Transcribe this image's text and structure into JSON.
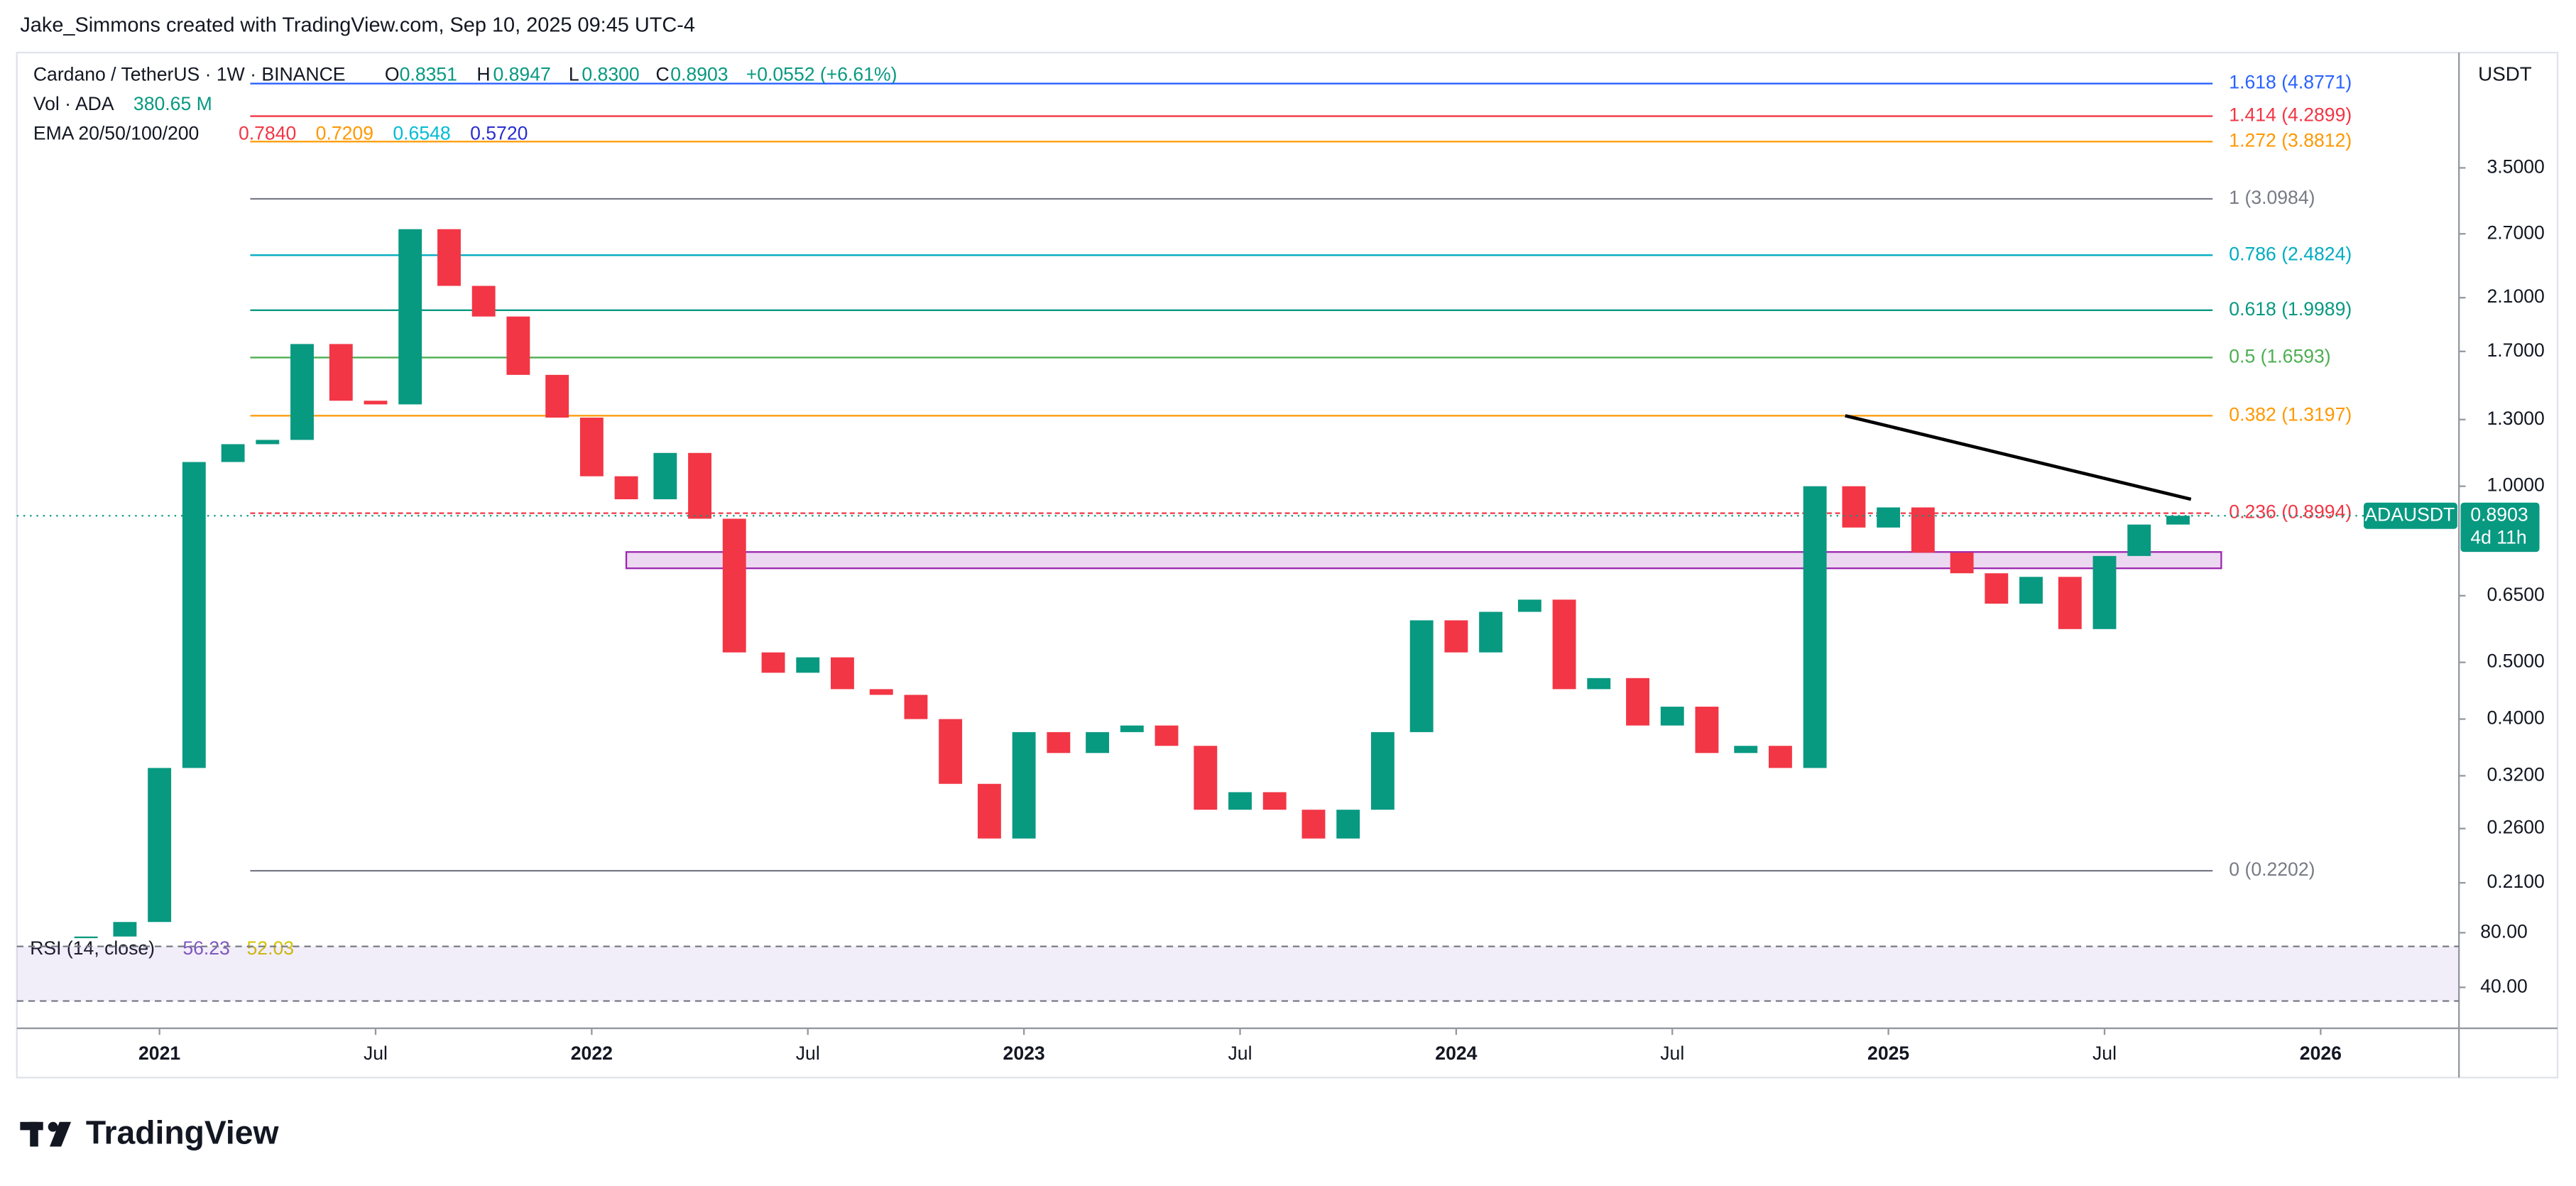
{
  "header": {
    "credit": "Jake_Simmons created with TradingView.com, Sep 10, 2025 09:45 UTC-4"
  },
  "legend": {
    "symbol": "Cardano / TetherUS · 1W · BINANCE",
    "o": "O",
    "open": "0.8351",
    "h": "H",
    "high": "0.8947",
    "l": "L",
    "low": "0.8300",
    "c": "C",
    "close": "0.8903",
    "change": "+0.0552 (+6.61%)",
    "vol_label": "Vol · ADA",
    "vol": "380.65 M",
    "ema_label": "EMA 20/50/100/200",
    "ema": [
      {
        "text": "0.7840",
        "color": "#f23645"
      },
      {
        "text": "0.7209",
        "color": "#ff9800"
      },
      {
        "text": "0.6548",
        "color": "#00bcd4"
      },
      {
        "text": "0.5720",
        "color": "#2a2ed0"
      }
    ]
  },
  "chart_data": {
    "type": "candlestick",
    "log_scale": true,
    "color_up": "#089981",
    "color_down": "#f23645",
    "currency": "USDT",
    "x": [
      2020.83,
      2020.92,
      2021.0,
      2021.08,
      2021.17,
      2021.25,
      2021.33,
      2021.42,
      2021.5,
      2021.58,
      2021.67,
      2021.75,
      2021.83,
      2021.92,
      2022.0,
      2022.08,
      2022.17,
      2022.25,
      2022.33,
      2022.42,
      2022.5,
      2022.58,
      2022.67,
      2022.75,
      2022.83,
      2022.92,
      2023.0,
      2023.08,
      2023.17,
      2023.25,
      2023.33,
      2023.42,
      2023.5,
      2023.58,
      2023.67,
      2023.75,
      2023.83,
      2023.92,
      2024.0,
      2024.08,
      2024.17,
      2024.25,
      2024.33,
      2024.42,
      2024.5,
      2024.58,
      2024.67,
      2024.75,
      2024.83,
      2024.92,
      2025.0,
      2025.08,
      2025.17,
      2025.25,
      2025.33,
      2025.42,
      2025.5,
      2025.58,
      2025.67
    ],
    "values": [
      0.17,
      0.18,
      0.33,
      1.1,
      1.18,
      1.2,
      1.75,
      1.4,
      1.38,
      2.75,
      2.2,
      1.95,
      1.55,
      1.31,
      1.04,
      0.95,
      1.14,
      0.88,
      0.52,
      0.48,
      0.51,
      0.45,
      0.44,
      0.4,
      0.31,
      0.25,
      0.38,
      0.35,
      0.38,
      0.39,
      0.36,
      0.28,
      0.3,
      0.28,
      0.25,
      0.28,
      0.38,
      0.59,
      0.52,
      0.61,
      0.64,
      0.45,
      0.47,
      0.39,
      0.42,
      0.35,
      0.36,
      0.33,
      1.0,
      0.85,
      0.92,
      0.77,
      0.71,
      0.63,
      0.7,
      0.57,
      0.76,
      0.86,
      0.8903
    ],
    "xlim": [
      2020.67,
      2026.32
    ],
    "ylim": [
      0.1815,
      5.51
    ],
    "xticks": [
      {
        "value": 2021,
        "label": "2021"
      },
      {
        "value": 2021.5,
        "label": "Jul"
      },
      {
        "value": 2022,
        "label": "2022"
      },
      {
        "value": 2022.5,
        "label": "Jul"
      },
      {
        "value": 2023,
        "label": "2023"
      },
      {
        "value": 2023.5,
        "label": "Jul"
      },
      {
        "value": 2024,
        "label": "2024"
      },
      {
        "value": 2024.5,
        "label": "Jul"
      },
      {
        "value": 2025,
        "label": "2025"
      },
      {
        "value": 2025.5,
        "label": "Jul"
      },
      {
        "value": 2026,
        "label": "2026"
      }
    ],
    "yticks": [
      {
        "value": 3.5,
        "label": "3.5000"
      },
      {
        "value": 2.7,
        "label": "2.7000"
      },
      {
        "value": 2.1,
        "label": "2.1000"
      },
      {
        "value": 1.7,
        "label": "1.7000"
      },
      {
        "value": 1.3,
        "label": "1.3000"
      },
      {
        "value": 1,
        "label": "1.0000"
      },
      {
        "value": 0.65,
        "label": "0.6500"
      },
      {
        "value": 0.5,
        "label": "0.5000"
      },
      {
        "value": 0.4,
        "label": "0.4000"
      },
      {
        "value": 0.32,
        "label": "0.3200"
      },
      {
        "value": 0.26,
        "label": "0.2600"
      },
      {
        "value": 0.21,
        "label": "0.2100"
      }
    ],
    "fib_levels": [
      {
        "label": "1.618 (4.8771)",
        "value": 4.8771,
        "color": "#2962ff"
      },
      {
        "label": "1.414 (4.2899)",
        "value": 4.2899,
        "color": "#f23645"
      },
      {
        "label": "1.272 (3.8812)",
        "value": 3.8812,
        "color": "#ff9800"
      },
      {
        "label": "1 (3.0984)",
        "value": 3.0984,
        "color": "#787b86"
      },
      {
        "label": "0.786 (2.4824)",
        "value": 2.4824,
        "color": "#00acc1"
      },
      {
        "label": "0.618 (1.9989)",
        "value": 1.9989,
        "color": "#089981"
      },
      {
        "label": "0.5 (1.6593)",
        "value": 1.6593,
        "color": "#4caf50"
      },
      {
        "label": "0.382 (1.3197)",
        "value": 1.3197,
        "color": "#ff9800"
      },
      {
        "label": "0.236 (0.8994)",
        "value": 0.8994,
        "color": "#f23645"
      },
      {
        "label": "0 (0.2202)",
        "value": 0.2202,
        "color": "#787b86"
      }
    ],
    "fib_x": [
      2021.21,
      2025.75
    ],
    "trendline": {
      "x": [
        2024.9,
        2025.7
      ],
      "values": [
        1.32,
        0.95
      ]
    },
    "zone": {
      "x": [
        2022.08,
        2025.77
      ],
      "values": [
        0.724,
        0.772
      ]
    },
    "last_price": {
      "symbol": "ADAUSDT",
      "value": 0.8903,
      "countdown": "4d 11h"
    }
  },
  "rsi_pane": {
    "title": "RSI (14, close)",
    "value": "56.23",
    "ma": "52.03",
    "ylim": [
      10,
      87
    ],
    "band": [
      30,
      70
    ],
    "yticks": [
      {
        "value": 80,
        "label": "80.00"
      },
      {
        "value": 40,
        "label": "40.00"
      }
    ]
  },
  "footer": {
    "brand": "TradingView"
  }
}
